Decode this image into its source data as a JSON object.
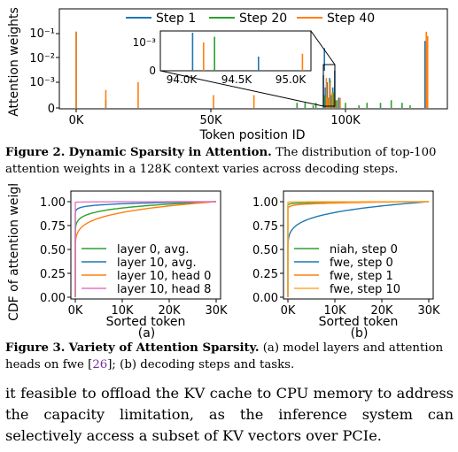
{
  "figure2": {
    "caption_label": "Figure 2.",
    "caption_title": "Dynamic Sparsity in Attention.",
    "caption_text": "The distribution of top-100 attention weights in a 128K context varies across decoding steps.",
    "chart_data": {
      "type": "bar",
      "xlabel": "Token position ID",
      "ylabel": "Attention weights",
      "y_scale": "symlog",
      "x_ticks": [
        "0K",
        "50K",
        "100K"
      ],
      "y_ticks": [
        "0",
        "10⁻³",
        "10⁻²",
        "10⁻¹"
      ],
      "legend": "top",
      "series": [
        {
          "name": "Step 1",
          "color": "#1f77b4",
          "x": [
            0,
            11000,
            91800,
            92500,
            93200,
            94100,
            94700,
            95300,
            96000,
            97500,
            129500
          ],
          "y": [
            0.12,
            0.0003,
            0.002,
            0.0008,
            0.001,
            0.0015,
            0.0005,
            0.0008,
            0.003,
            0.0004,
            0.05
          ]
        },
        {
          "name": "Step 20",
          "color": "#2ca02c",
          "x": [
            82000,
            85000,
            88000,
            89000,
            92100,
            93600,
            94300,
            95600,
            96800,
            100000,
            105000,
            108000,
            113000,
            117000,
            121000,
            124000
          ],
          "y": [
            0.0002,
            0.0002,
            0.0001,
            0.0002,
            0.0005,
            0.0004,
            0.0012,
            0.0006,
            0.0003,
            0.0002,
            0.0001,
            0.0002,
            0.0002,
            0.0003,
            0.0002,
            0.0001
          ]
        },
        {
          "name": "Step 40",
          "color": "#ff7f0e",
          "x": [
            0,
            11000,
            23000,
            51000,
            66000,
            92900,
            93400,
            94200,
            95100,
            96400,
            98000,
            130000,
            130500
          ],
          "y": [
            0.12,
            0.0007,
            0.001,
            0.0005,
            0.0005,
            0.0015,
            0.0004,
            0.001,
            0.0006,
            0.0003,
            0.0004,
            0.12,
            0.08
          ]
        }
      ],
      "inset": {
        "x_ticks": [
          "94.0K",
          "94.5K",
          "95.0K"
        ],
        "y_ticks": [
          "0",
          "10⁻³"
        ]
      }
    }
  },
  "figure3": {
    "caption_label": "Figure 3.",
    "caption_title": "Variety of Attention Sparsity.",
    "caption_text_1": "(a) model layers and attention heads on fwe [",
    "caption_cite": "26",
    "caption_text_2": "]; (b) decoding steps and tasks.",
    "ylabel": "CDF of attention weights",
    "chart_data": [
      {
        "type": "line",
        "label": "(a)",
        "xlabel": "Sorted token",
        "x_ticks": [
          "0K",
          "10K",
          "20K",
          "30K"
        ],
        "y_ticks": [
          "0.00",
          "0.25",
          "0.50",
          "0.75",
          "1.00"
        ],
        "xlim": [
          0,
          30000
        ],
        "ylim": [
          0,
          1
        ],
        "legend": "lower-right",
        "series": [
          {
            "name": "layer 0, avg.",
            "color": "#2ca02c",
            "a": 0.52,
            "p": 0.135
          },
          {
            "name": "layer 10, avg.",
            "color": "#1f77b4",
            "a": 0.72,
            "p": 0.075
          },
          {
            "name": "layer 10, head 0",
            "color": "#ff7f0e",
            "a": 0.4,
            "p": 0.19
          },
          {
            "name": "layer 10, head 8",
            "color": "#e377c2",
            "a": 0.93,
            "p": 0.015
          }
        ]
      },
      {
        "type": "line",
        "label": "(b)",
        "xlabel": "Sorted token",
        "x_ticks": [
          "0K",
          "10K",
          "20K",
          "30K"
        ],
        "y_ticks": [
          "0.00",
          "0.25",
          "0.50",
          "0.75",
          "1.00"
        ],
        "xlim": [
          0,
          30000
        ],
        "ylim": [
          0,
          1
        ],
        "legend": "lower-right",
        "series": [
          {
            "name": "niah, step 0",
            "color": "#2ca02c",
            "a": 0.85,
            "p": 0.04
          },
          {
            "name": "fwe, step 0",
            "color": "#1f77b4",
            "a": 0.4,
            "p": 0.19
          },
          {
            "name": "fwe, step 1",
            "color": "#ff7f0e",
            "a": 0.78,
            "p": 0.06
          },
          {
            "name": "fwe, step 10",
            "color": "#ffaa33",
            "a": 0.94,
            "p": 0.012
          }
        ]
      }
    ]
  },
  "body_text": "it feasible to offload the KV cache to CPU memory to address the capacity limitation, as the inference system can selectively access a subset of KV vectors over PCIe."
}
